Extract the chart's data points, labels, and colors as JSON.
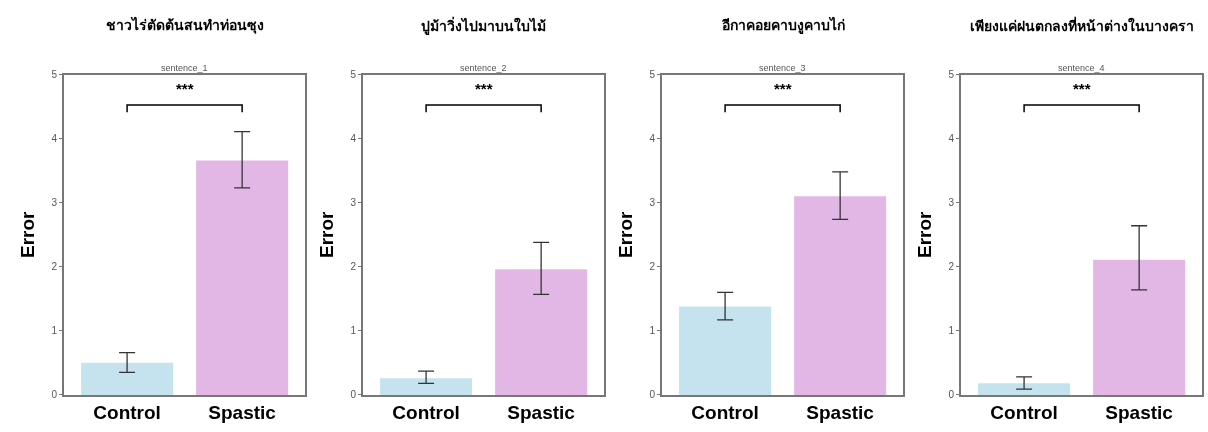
{
  "chart_data": [
    {
      "type": "bar",
      "title": "ชาวไร่ตัดต้นสนทำท่อนซุง",
      "subtitle": "sentence_1",
      "ylabel": "Error",
      "categories": [
        "Control",
        "Spastic"
      ],
      "values": [
        0.5,
        3.66
      ],
      "colors": [
        "#c5e3ef",
        "#e3b7e5"
      ],
      "errors": [
        [
          0.35,
          0.66
        ],
        [
          3.23,
          4.11
        ]
      ],
      "ylim": [
        0,
        5
      ],
      "yticks": [
        0,
        1,
        2,
        3,
        4,
        5
      ],
      "annotations": [
        "***"
      ]
    },
    {
      "type": "bar",
      "title": "ปูม้าวิ่งไปมาบนใบไม้",
      "subtitle": "sentence_2",
      "ylabel": "Error",
      "categories": [
        "Control",
        "Spastic"
      ],
      "values": [
        0.26,
        1.96
      ],
      "colors": [
        "#c5e3ef",
        "#e3b7e5"
      ],
      "errors": [
        [
          0.18,
          0.37
        ],
        [
          1.57,
          2.38
        ]
      ],
      "ylim": [
        0,
        5
      ],
      "yticks": [
        0,
        1,
        2,
        3,
        4,
        5
      ],
      "annotations": [
        "***"
      ]
    },
    {
      "type": "bar",
      "title": "อีกาคอยคาบงูคาบไก่",
      "subtitle": "sentence_3",
      "ylabel": "Error",
      "categories": [
        "Control",
        "Spastic"
      ],
      "values": [
        1.38,
        3.1
      ],
      "colors": [
        "#c5e3ef",
        "#e3b7e5"
      ],
      "errors": [
        [
          1.17,
          1.6
        ],
        [
          2.74,
          3.48
        ]
      ],
      "ylim": [
        0,
        5
      ],
      "yticks": [
        0,
        1,
        2,
        3,
        4,
        5
      ],
      "annotations": [
        "***"
      ]
    },
    {
      "type": "bar",
      "title": "เพียงแค่ฝนตกลงที่หน้าต่างในบางครา",
      "subtitle": "sentence_4",
      "ylabel": "Error",
      "categories": [
        "Control",
        "Spastic"
      ],
      "values": [
        0.18,
        2.11
      ],
      "colors": [
        "#c5e3ef",
        "#e3b7e5"
      ],
      "errors": [
        [
          0.09,
          0.28
        ],
        [
          1.64,
          2.64
        ]
      ],
      "ylim": [
        0,
        5
      ],
      "yticks": [
        0,
        1,
        2,
        3,
        4,
        5
      ],
      "annotations": [
        "***"
      ]
    }
  ]
}
